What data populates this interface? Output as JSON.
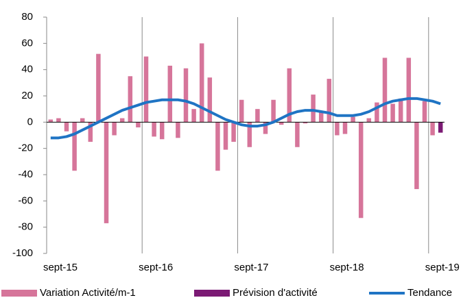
{
  "chart_data": {
    "type": "bar",
    "categories": [
      "sept-15",
      null,
      null,
      null,
      null,
      null,
      null,
      null,
      null,
      null,
      null,
      null,
      "sept-16",
      null,
      null,
      null,
      null,
      null,
      null,
      null,
      null,
      null,
      null,
      null,
      "sept-17",
      null,
      null,
      null,
      null,
      null,
      null,
      null,
      null,
      null,
      null,
      null,
      "sept-18",
      null,
      null,
      null,
      null,
      null,
      null,
      null,
      null,
      null,
      null,
      null,
      "sept-19",
      null
    ],
    "series": [
      {
        "name": "Variation Activité/m-1",
        "color": "#d6759a",
        "values": [
          2,
          3,
          -7,
          -37,
          3,
          -15,
          52,
          -77,
          -10,
          3,
          35,
          -4,
          50,
          -11,
          -13,
          43,
          -12,
          41,
          10,
          60,
          34,
          -37,
          -21,
          -15,
          17,
          -19,
          10,
          -9,
          17,
          -2,
          41,
          -19,
          -1,
          21,
          8,
          33,
          -10,
          -9,
          4,
          -73,
          3,
          15,
          49,
          14,
          18,
          49,
          -51,
          16,
          -10,
          null
        ]
      },
      {
        "name": "Prévision d'activité",
        "color": "#7b1a74",
        "values": [
          null,
          null,
          null,
          null,
          null,
          null,
          null,
          null,
          null,
          null,
          null,
          null,
          null,
          null,
          null,
          null,
          null,
          null,
          null,
          null,
          null,
          null,
          null,
          null,
          null,
          null,
          null,
          null,
          null,
          null,
          null,
          null,
          null,
          null,
          null,
          null,
          null,
          null,
          null,
          null,
          null,
          null,
          null,
          null,
          null,
          null,
          null,
          null,
          null,
          -8
        ]
      },
      {
        "name": "Tendance",
        "color": "#1f74c4",
        "type": "line",
        "values": [
          -12,
          -12,
          -11,
          -9,
          -6,
          -3,
          0,
          3,
          6,
          9,
          11,
          13,
          15,
          16,
          17,
          17,
          17,
          16,
          14,
          11,
          8,
          5,
          2,
          0,
          -2,
          -3,
          -3,
          -2,
          0,
          3,
          6,
          8,
          9,
          9,
          8,
          7,
          5,
          5,
          5,
          6,
          8,
          11,
          14,
          16,
          17,
          18,
          18,
          17,
          16,
          14
        ]
      }
    ],
    "ylim": [
      -100,
      80
    ],
    "yticks": [
      -100,
      -80,
      -60,
      -40,
      -20,
      0,
      20,
      40,
      60,
      80
    ]
  }
}
